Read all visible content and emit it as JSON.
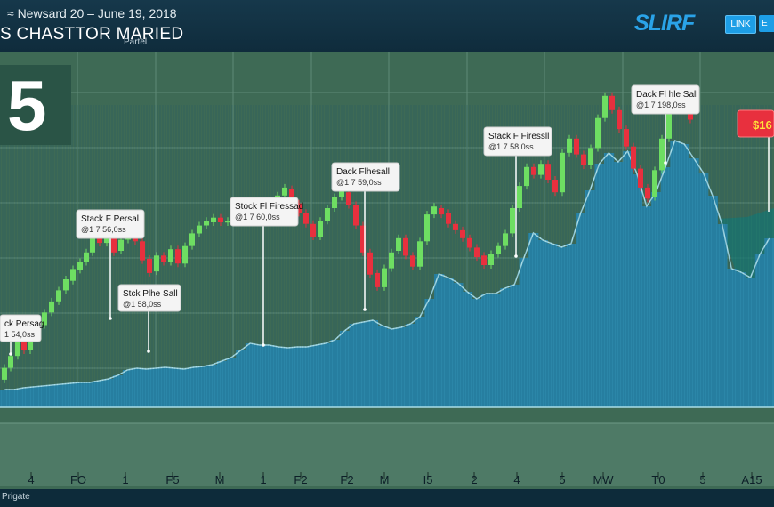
{
  "header": {
    "date": "≈ Newsard 20⁠ – June 19, 2018",
    "title": "S CHASTTOR MARIED",
    "subtitle": "Partel",
    "logo": "SLIRF",
    "link_label": "LINK",
    "extra_label": "E"
  },
  "big_number": "5",
  "footer_label": "Prigate",
  "colors": {
    "up": "#6ede62",
    "down": "#e8303e",
    "volume": "#2b86a8",
    "grid": "#5f8a76",
    "price_tag": "#e8303e"
  },
  "chart_data": {
    "type": "bar",
    "title": "",
    "x_tick_labels": [
      "4",
      "FO",
      "1",
      "F5",
      "M",
      "1",
      "F2",
      "F2",
      "M",
      "I5",
      "2",
      "4",
      "5",
      "MW",
      "T0",
      "5",
      "A15"
    ],
    "volume_values": [
      20,
      20,
      22,
      23,
      24,
      25,
      26,
      27,
      28,
      28,
      30,
      32,
      36,
      42,
      44,
      43,
      44,
      45,
      44,
      43,
      45,
      46,
      48,
      52,
      56,
      64,
      72,
      70,
      70,
      68,
      67,
      68,
      68,
      70,
      72,
      76,
      86,
      94,
      96,
      98,
      92,
      88,
      90,
      94,
      102,
      122,
      150,
      146,
      140,
      130,
      122,
      128,
      128,
      134,
      138,
      168,
      196,
      188,
      184,
      180,
      184,
      218,
      244,
      274,
      286,
      276,
      288,
      262,
      226,
      242,
      270,
      300,
      296,
      280,
      264,
      238,
      206,
      156,
      152,
      146,
      172,
      190
    ],
    "volume_range": [
      0,
      340
    ],
    "candles": [
      {
        "x": 5,
        "o": 235,
        "c": 250
      },
      {
        "x": 12,
        "o": 250,
        "c": 265
      },
      {
        "x": 20,
        "o": 265,
        "c": 285
      },
      {
        "x": 27,
        "o": 285,
        "c": 272
      },
      {
        "x": 34,
        "o": 272,
        "c": 290
      },
      {
        "x": 42,
        "o": 288,
        "c": 306
      },
      {
        "x": 50,
        "o": 304,
        "c": 320
      },
      {
        "x": 58,
        "o": 320,
        "c": 334
      },
      {
        "x": 66,
        "o": 334,
        "c": 348
      },
      {
        "x": 74,
        "o": 348,
        "c": 362
      },
      {
        "x": 82,
        "o": 360,
        "c": 375
      },
      {
        "x": 90,
        "o": 374,
        "c": 384
      },
      {
        "x": 97,
        "o": 384,
        "c": 396
      },
      {
        "x": 104,
        "o": 396,
        "c": 422
      },
      {
        "x": 112,
        "o": 420,
        "c": 408
      },
      {
        "x": 120,
        "o": 408,
        "c": 415
      },
      {
        "x": 128,
        "o": 414,
        "c": 396
      },
      {
        "x": 136,
        "o": 398,
        "c": 412
      },
      {
        "x": 144,
        "o": 412,
        "c": 428
      },
      {
        "x": 152,
        "o": 428,
        "c": 410
      },
      {
        "x": 160,
        "o": 410,
        "c": 386
      },
      {
        "x": 168,
        "o": 388,
        "c": 370
      },
      {
        "x": 176,
        "o": 372,
        "c": 392
      },
      {
        "x": 184,
        "o": 392,
        "c": 384
      },
      {
        "x": 192,
        "o": 384,
        "c": 400
      },
      {
        "x": 200,
        "o": 400,
        "c": 382
      },
      {
        "x": 208,
        "o": 382,
        "c": 404
      },
      {
        "x": 216,
        "o": 404,
        "c": 420
      },
      {
        "x": 224,
        "o": 420,
        "c": 430
      },
      {
        "x": 232,
        "o": 430,
        "c": 436
      },
      {
        "x": 240,
        "o": 434,
        "c": 440
      },
      {
        "x": 248,
        "o": 440,
        "c": 434
      },
      {
        "x": 256,
        "o": 434,
        "c": 436
      },
      {
        "x": 264,
        "o": 436,
        "c": 442
      },
      {
        "x": 272,
        "o": 442,
        "c": 438
      },
      {
        "x": 280,
        "o": 438,
        "c": 444
      },
      {
        "x": 288,
        "o": 444,
        "c": 440
      },
      {
        "x": 296,
        "o": 440,
        "c": 448
      },
      {
        "x": 304,
        "o": 448,
        "c": 456
      },
      {
        "x": 312,
        "o": 456,
        "c": 468
      },
      {
        "x": 320,
        "o": 468,
        "c": 478
      },
      {
        "x": 328,
        "o": 476,
        "c": 456
      },
      {
        "x": 336,
        "o": 458,
        "c": 446
      },
      {
        "x": 344,
        "o": 446,
        "c": 432
      },
      {
        "x": 352,
        "o": 432,
        "c": 416
      },
      {
        "x": 360,
        "o": 416,
        "c": 436
      },
      {
        "x": 368,
        "o": 436,
        "c": 452
      },
      {
        "x": 376,
        "o": 452,
        "c": 466
      },
      {
        "x": 384,
        "o": 466,
        "c": 474
      },
      {
        "x": 392,
        "o": 472,
        "c": 456
      },
      {
        "x": 400,
        "o": 456,
        "c": 430
      },
      {
        "x": 408,
        "o": 430,
        "c": 396
      },
      {
        "x": 416,
        "o": 396,
        "c": 368
      },
      {
        "x": 424,
        "o": 370,
        "c": 352
      },
      {
        "x": 432,
        "o": 352,
        "c": 376
      },
      {
        "x": 440,
        "o": 376,
        "c": 396
      },
      {
        "x": 448,
        "o": 398,
        "c": 414
      },
      {
        "x": 456,
        "o": 414,
        "c": 392
      },
      {
        "x": 464,
        "o": 392,
        "c": 378
      },
      {
        "x": 472,
        "o": 378,
        "c": 410
      },
      {
        "x": 480,
        "o": 410,
        "c": 444
      },
      {
        "x": 488,
        "o": 444,
        "c": 454
      },
      {
        "x": 496,
        "o": 452,
        "c": 444
      },
      {
        "x": 504,
        "o": 446,
        "c": 432
      },
      {
        "x": 512,
        "o": 432,
        "c": 424
      },
      {
        "x": 520,
        "o": 424,
        "c": 414
      },
      {
        "x": 528,
        "o": 414,
        "c": 402
      },
      {
        "x": 536,
        "o": 402,
        "c": 390
      },
      {
        "x": 544,
        "o": 392,
        "c": 380
      },
      {
        "x": 552,
        "o": 380,
        "c": 394
      },
      {
        "x": 560,
        "o": 394,
        "c": 404
      },
      {
        "x": 568,
        "o": 404,
        "c": 420
      },
      {
        "x": 576,
        "o": 420,
        "c": 452
      },
      {
        "x": 584,
        "o": 452,
        "c": 480
      },
      {
        "x": 592,
        "o": 480,
        "c": 504
      },
      {
        "x": 600,
        "o": 504,
        "c": 494
      },
      {
        "x": 608,
        "o": 494,
        "c": 508
      },
      {
        "x": 616,
        "o": 508,
        "c": 488
      },
      {
        "x": 624,
        "o": 488,
        "c": 472
      },
      {
        "x": 632,
        "o": 472,
        "c": 522
      },
      {
        "x": 640,
        "o": 522,
        "c": 540
      },
      {
        "x": 648,
        "o": 540,
        "c": 520
      },
      {
        "x": 656,
        "o": 520,
        "c": 506
      },
      {
        "x": 664,
        "o": 506,
        "c": 528
      },
      {
        "x": 672,
        "o": 528,
        "c": 566
      },
      {
        "x": 680,
        "o": 566,
        "c": 594
      },
      {
        "x": 688,
        "o": 594,
        "c": 576
      },
      {
        "x": 696,
        "o": 576,
        "c": 552
      },
      {
        "x": 704,
        "o": 552,
        "c": 530
      },
      {
        "x": 712,
        "o": 530,
        "c": 502
      },
      {
        "x": 720,
        "o": 502,
        "c": 478
      },
      {
        "x": 728,
        "o": 478,
        "c": 464
      },
      {
        "x": 736,
        "o": 466,
        "c": 500
      },
      {
        "x": 744,
        "o": 500,
        "c": 540
      },
      {
        "x": 752,
        "o": 540,
        "c": 578
      },
      {
        "x": 760,
        "o": 578,
        "c": 602
      },
      {
        "x": 768,
        "o": 602,
        "c": 584
      },
      {
        "x": 776,
        "o": 584,
        "c": 564
      }
    ],
    "price_range": [
      200,
      650
    ],
    "x_range": [
      0,
      870
    ],
    "annotations": [
      {
        "title": "Stack F Persal",
        "sub": "@1 7 56,0ss",
        "target_x": 124
      },
      {
        "title": "Stck Plhe Sall",
        "sub": "@1 58,0ss",
        "target_x": 167
      },
      {
        "title": "Stock Fl Firessad",
        "sub": "@1 7 60,0ss",
        "target_x": 296
      },
      {
        "title": "Dack Flhesall",
        "sub": "@1 7 59,0ss",
        "target_x": 410
      },
      {
        "title": "Stack F Firessll",
        "sub": "@1 7 58,0ss",
        "target_x": 580
      },
      {
        "title": "Dack Fl hle Sall",
        "sub": "@1 7 198,0ss",
        "target_x": 748
      },
      {
        "title": "ck Persag",
        "sub": "1 54,0ss",
        "target_x": 12
      }
    ],
    "price_tag": "$16",
    "grid": true
  }
}
